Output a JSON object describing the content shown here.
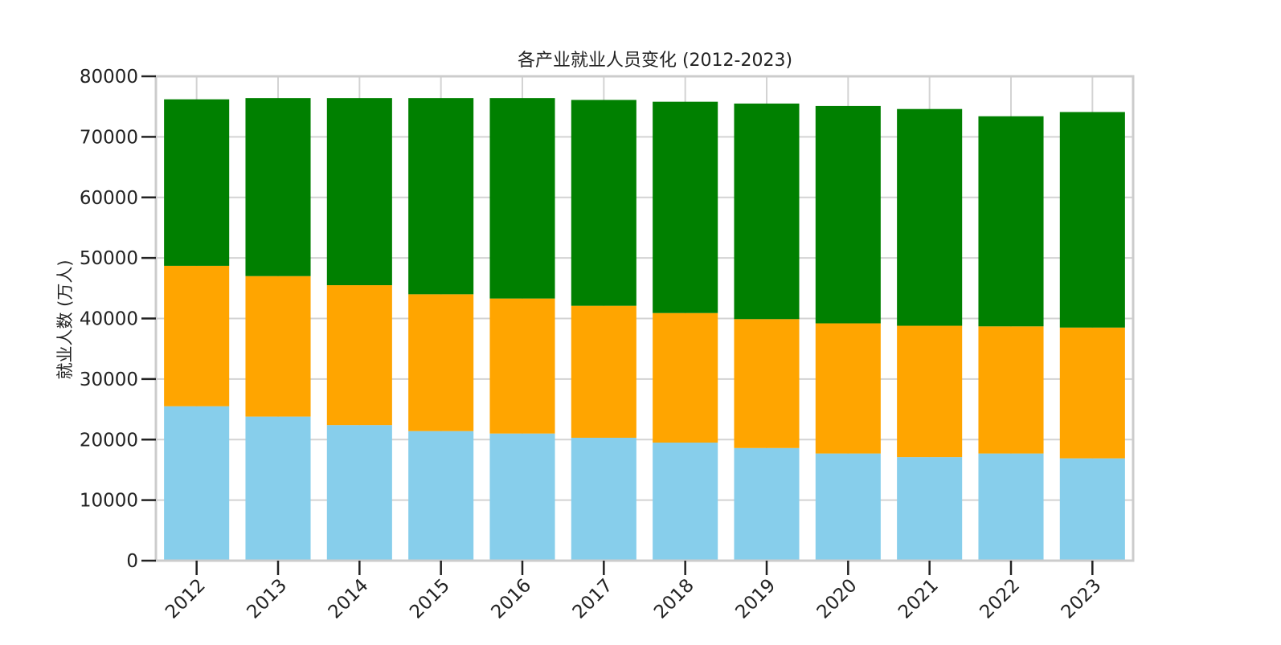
{
  "chart_data": {
    "type": "bar",
    "stacked": true,
    "title": "各产业就业人员变化 (2012-2023)",
    "xlabel": "",
    "ylabel": "就业人数 (万人)",
    "ylim": [
      0,
      80000
    ],
    "yticks": [
      0,
      10000,
      20000,
      30000,
      40000,
      50000,
      60000,
      70000,
      80000
    ],
    "grid": true,
    "legend": "none",
    "categories": [
      "2012",
      "2013",
      "2014",
      "2015",
      "2016",
      "2017",
      "2018",
      "2019",
      "2020",
      "2021",
      "2022",
      "2023"
    ],
    "series": [
      {
        "color": "#87CEEB",
        "values": [
          25500,
          23800,
          22400,
          21400,
          21000,
          20300,
          19500,
          18600,
          17700,
          17100,
          17700,
          16900
        ]
      },
      {
        "color": "#FFA500",
        "values": [
          23200,
          23200,
          23100,
          22600,
          22300,
          21800,
          21400,
          21300,
          21500,
          21700,
          21000,
          21600
        ]
      },
      {
        "color": "#008000",
        "values": [
          27500,
          29400,
          30900,
          32400,
          33100,
          34000,
          34900,
          35600,
          35900,
          35800,
          34700,
          35600
        ]
      }
    ]
  }
}
